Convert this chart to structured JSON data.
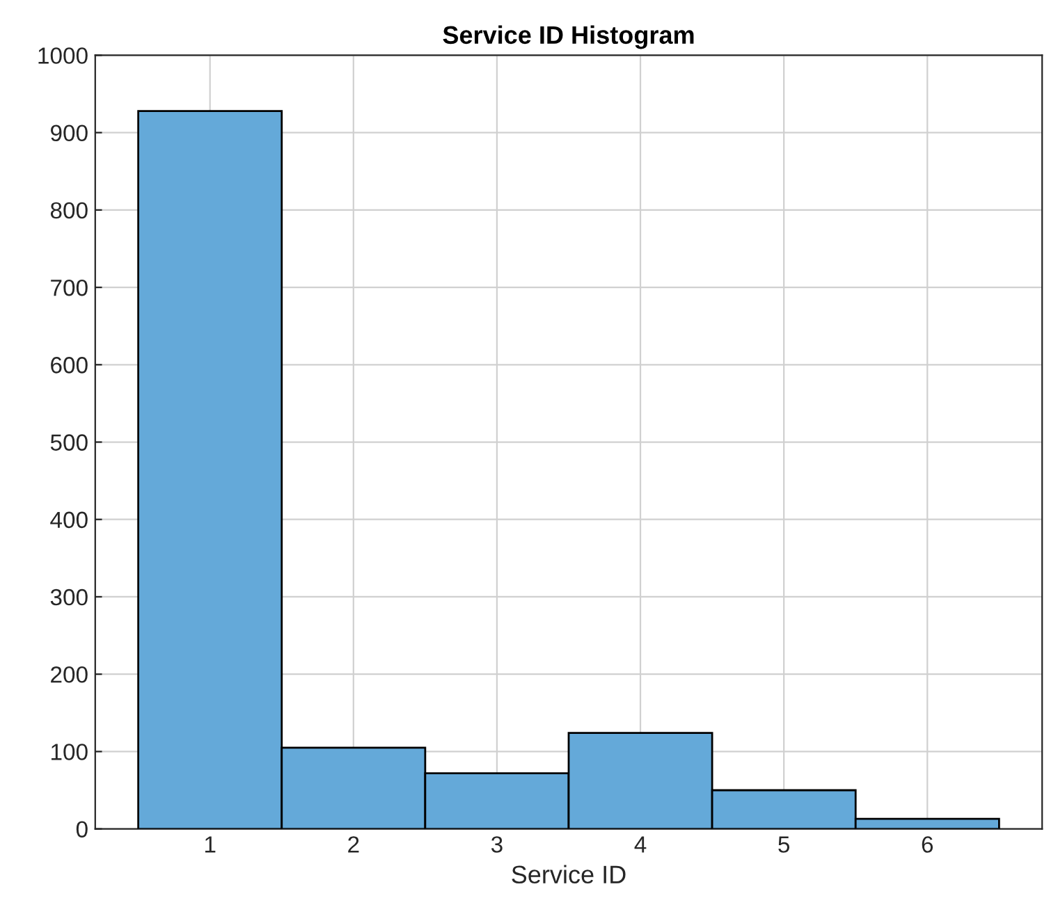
{
  "chart_data": {
    "type": "histogram",
    "title": "Service ID Histogram",
    "xlabel": "Service ID",
    "bins": [
      0.5,
      1.5,
      2.5,
      3.5,
      4.5,
      5.5,
      6.5
    ],
    "values": [
      928,
      105,
      72,
      124,
      50,
      13
    ],
    "color": "#64a9d9",
    "xlim": [
      0.2,
      6.8
    ],
    "xticks": [
      1,
      2,
      3,
      4,
      5,
      6
    ],
    "ylim": [
      0,
      1000
    ],
    "yticks": [
      0,
      100,
      200,
      300,
      400,
      500,
      600,
      700,
      800,
      900,
      1000
    ],
    "grid": true
  }
}
